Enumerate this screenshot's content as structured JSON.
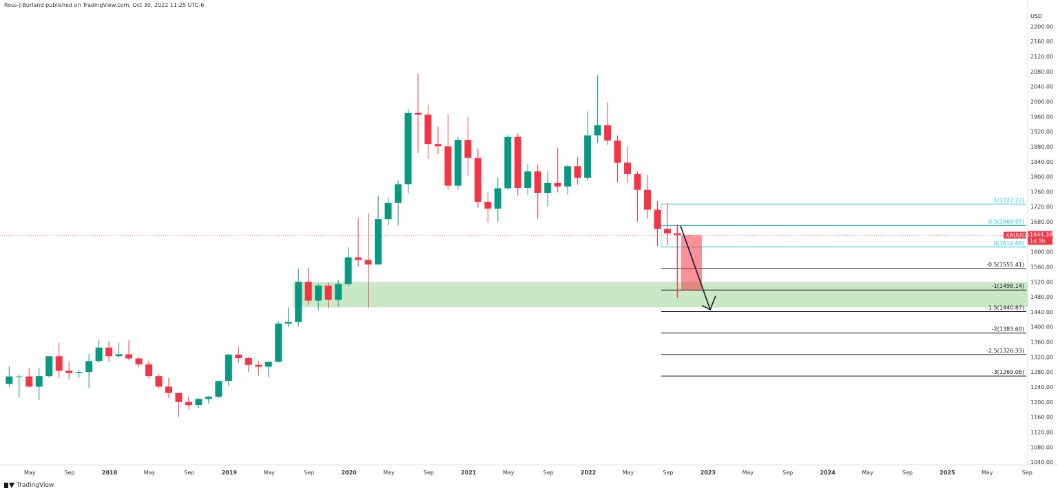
{
  "header": {
    "publisher": "Ross-J-Burland published on TradingView.com, Oct 30, 2022 11:25 UTC-6"
  },
  "footer": {
    "brand": "TradingView"
  },
  "chart_data": {
    "type": "candlestick",
    "symbol": "XAUUSD",
    "currency": "USD",
    "last_price": "1644.30",
    "countdown": "1d 5h",
    "ylim": [
      1020,
      2220
    ],
    "y_ticks": [
      1040,
      1080,
      1120,
      1160,
      1200,
      1240,
      1280,
      1320,
      1360,
      1400,
      1440,
      1480,
      1520,
      1560,
      1600,
      1640,
      1680,
      1720,
      1760,
      1800,
      1840,
      1880,
      1920,
      1960,
      2000,
      2040,
      2080,
      2120,
      2160,
      2200
    ],
    "x_labels": [
      "May",
      "Sep",
      "2018",
      "May",
      "Sep",
      "2019",
      "May",
      "Sep",
      "2020",
      "May",
      "Sep",
      "2021",
      "May",
      "Sep",
      "2022",
      "May",
      "Sep",
      "2023",
      "May",
      "Sep",
      "2024",
      "May",
      "Sep",
      "2025",
      "May",
      "Sep"
    ],
    "colors": {
      "up": "#089981",
      "down": "#F23645",
      "fib": "#26C6DA",
      "zone": "#B9E0B3"
    },
    "candles": [
      {
        "o": 1248,
        "h": 1295,
        "l": 1240,
        "c": 1268
      },
      {
        "o": 1268,
        "h": 1273,
        "l": 1212,
        "c": 1268
      },
      {
        "o": 1268,
        "h": 1290,
        "l": 1238,
        "c": 1241
      },
      {
        "o": 1241,
        "h": 1290,
        "l": 1205,
        "c": 1269
      },
      {
        "o": 1269,
        "h": 1320,
        "l": 1265,
        "c": 1322
      },
      {
        "o": 1322,
        "h": 1358,
        "l": 1263,
        "c": 1283
      },
      {
        "o": 1283,
        "h": 1307,
        "l": 1260,
        "c": 1277
      },
      {
        "o": 1277,
        "h": 1285,
        "l": 1264,
        "c": 1280
      },
      {
        "o": 1280,
        "h": 1328,
        "l": 1236,
        "c": 1309
      },
      {
        "o": 1309,
        "h": 1366,
        "l": 1305,
        "c": 1345
      },
      {
        "o": 1345,
        "h": 1362,
        "l": 1306,
        "c": 1322
      },
      {
        "o": 1322,
        "h": 1358,
        "l": 1318,
        "c": 1327
      },
      {
        "o": 1327,
        "h": 1365,
        "l": 1311,
        "c": 1316
      },
      {
        "o": 1316,
        "h": 1320,
        "l": 1292,
        "c": 1300
      },
      {
        "o": 1300,
        "h": 1310,
        "l": 1262,
        "c": 1269
      },
      {
        "o": 1269,
        "h": 1275,
        "l": 1237,
        "c": 1241
      },
      {
        "o": 1241,
        "h": 1265,
        "l": 1211,
        "c": 1224
      },
      {
        "o": 1224,
        "h": 1215,
        "l": 1160,
        "c": 1200
      },
      {
        "o": 1200,
        "h": 1215,
        "l": 1180,
        "c": 1192
      },
      {
        "o": 1192,
        "h": 1210,
        "l": 1184,
        "c": 1208
      },
      {
        "o": 1208,
        "h": 1216,
        "l": 1196,
        "c": 1214
      },
      {
        "o": 1214,
        "h": 1255,
        "l": 1211,
        "c": 1256
      },
      {
        "o": 1256,
        "h": 1328,
        "l": 1243,
        "c": 1326
      },
      {
        "o": 1326,
        "h": 1346,
        "l": 1303,
        "c": 1317
      },
      {
        "o": 1317,
        "h": 1320,
        "l": 1280,
        "c": 1299
      },
      {
        "o": 1299,
        "h": 1310,
        "l": 1270,
        "c": 1294
      },
      {
        "o": 1294,
        "h": 1306,
        "l": 1266,
        "c": 1307
      },
      {
        "o": 1307,
        "h": 1416,
        "l": 1305,
        "c": 1409
      },
      {
        "o": 1409,
        "h": 1452,
        "l": 1400,
        "c": 1413
      },
      {
        "o": 1413,
        "h": 1555,
        "l": 1400,
        "c": 1520
      },
      {
        "o": 1520,
        "h": 1557,
        "l": 1459,
        "c": 1470
      },
      {
        "o": 1470,
        "h": 1515,
        "l": 1445,
        "c": 1510
      },
      {
        "o": 1510,
        "h": 1517,
        "l": 1450,
        "c": 1472
      },
      {
        "o": 1472,
        "h": 1525,
        "l": 1455,
        "c": 1514
      },
      {
        "o": 1514,
        "h": 1612,
        "l": 1509,
        "c": 1585
      },
      {
        "o": 1585,
        "h": 1690,
        "l": 1560,
        "c": 1578
      },
      {
        "o": 1578,
        "h": 1703,
        "l": 1451,
        "c": 1566
      },
      {
        "o": 1566,
        "h": 1750,
        "l": 1566,
        "c": 1687
      },
      {
        "o": 1687,
        "h": 1744,
        "l": 1670,
        "c": 1730
      },
      {
        "o": 1730,
        "h": 1790,
        "l": 1670,
        "c": 1780
      },
      {
        "o": 1780,
        "h": 1981,
        "l": 1755,
        "c": 1970
      },
      {
        "o": 1970,
        "h": 2075,
        "l": 1863,
        "c": 1965
      },
      {
        "o": 1965,
        "h": 1992,
        "l": 1848,
        "c": 1887
      },
      {
        "o": 1887,
        "h": 1933,
        "l": 1860,
        "c": 1881
      },
      {
        "o": 1881,
        "h": 1966,
        "l": 1764,
        "c": 1776
      },
      {
        "o": 1776,
        "h": 1906,
        "l": 1765,
        "c": 1898
      },
      {
        "o": 1898,
        "h": 1959,
        "l": 1802,
        "c": 1850
      },
      {
        "o": 1850,
        "h": 1875,
        "l": 1717,
        "c": 1733
      },
      {
        "o": 1733,
        "h": 1758,
        "l": 1677,
        "c": 1715
      },
      {
        "o": 1715,
        "h": 1797,
        "l": 1679,
        "c": 1769
      },
      {
        "o": 1769,
        "h": 1912,
        "l": 1765,
        "c": 1906
      },
      {
        "o": 1906,
        "h": 1916,
        "l": 1750,
        "c": 1770
      },
      {
        "o": 1770,
        "h": 1834,
        "l": 1751,
        "c": 1814
      },
      {
        "o": 1814,
        "h": 1832,
        "l": 1688,
        "c": 1757
      },
      {
        "o": 1757,
        "h": 1814,
        "l": 1721,
        "c": 1783
      },
      {
        "o": 1783,
        "h": 1877,
        "l": 1758,
        "c": 1774
      },
      {
        "o": 1774,
        "h": 1831,
        "l": 1752,
        "c": 1828
      },
      {
        "o": 1828,
        "h": 1853,
        "l": 1778,
        "c": 1797
      },
      {
        "o": 1797,
        "h": 1974,
        "l": 1788,
        "c": 1910
      },
      {
        "o": 1910,
        "h": 2070,
        "l": 1890,
        "c": 1937
      },
      {
        "o": 1937,
        "h": 1998,
        "l": 1884,
        "c": 1896
      },
      {
        "o": 1896,
        "h": 1910,
        "l": 1786,
        "c": 1837
      },
      {
        "o": 1837,
        "h": 1880,
        "l": 1784,
        "c": 1807
      },
      {
        "o": 1807,
        "h": 1814,
        "l": 1680,
        "c": 1765
      },
      {
        "o": 1765,
        "h": 1805,
        "l": 1688,
        "c": 1712
      },
      {
        "o": 1712,
        "h": 1735,
        "l": 1614,
        "c": 1661
      },
      {
        "o": 1661,
        "h": 1729,
        "l": 1617,
        "c": 1649
      },
      {
        "o": 1649,
        "h": 1673,
        "l": 1477,
        "c": 1644.3
      }
    ],
    "projection": {
      "o": 1644.3,
      "c": 1498.14,
      "h": 1673,
      "l": 1477
    },
    "fib_levels": [
      {
        "label": "1(1727.22)",
        "value": 1727.22,
        "style": "fib"
      },
      {
        "label": "0.5(1669.95)",
        "value": 1669.95,
        "style": "fib"
      },
      {
        "label": "0(1612.68)",
        "value": 1612.68,
        "style": "fib"
      },
      {
        "label": "-0.5(1555.41)",
        "value": 1555.41,
        "style": "ext"
      },
      {
        "label": "-1(1498.14)",
        "value": 1498.14,
        "style": "ext"
      },
      {
        "label": "-1.5(1440.87)",
        "value": 1440.87,
        "style": "ext"
      },
      {
        "label": "-2(1383.60)",
        "value": 1383.6,
        "style": "ext"
      },
      {
        "label": "-2.5(1326.33)",
        "value": 1326.33,
        "style": "ext"
      },
      {
        "label": "-3(1269.06)",
        "value": 1269.06,
        "style": "ext"
      }
    ],
    "zone": {
      "top": 1520,
      "bottom": 1452
    }
  }
}
